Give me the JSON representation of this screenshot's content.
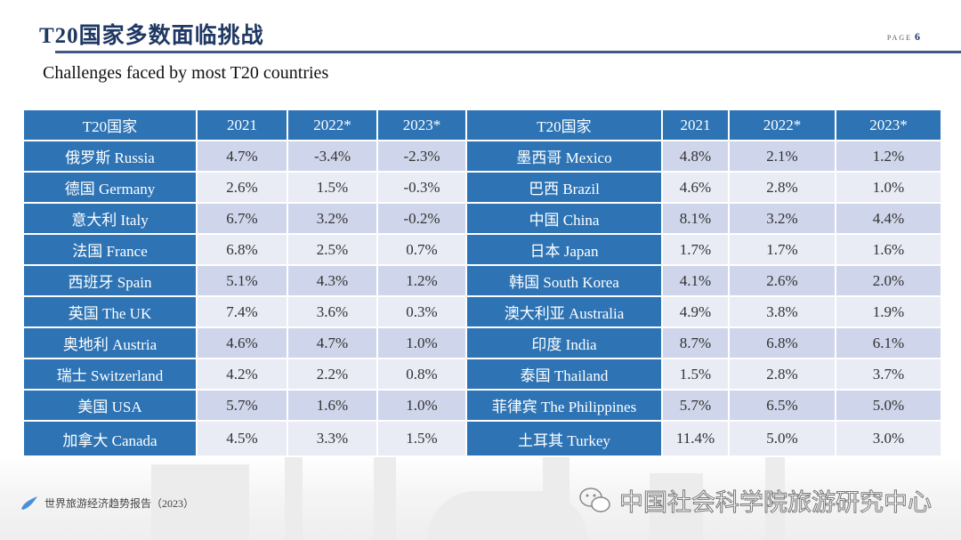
{
  "header": {
    "title": "T20国家多数面临挑战",
    "page_label": "PAGE",
    "page_number": "6"
  },
  "subtitle": "Challenges faced by most T20 countries",
  "table": {
    "columns": [
      "T20国家",
      "2021",
      "2022*",
      "2023*"
    ],
    "left": [
      [
        "俄罗斯 Russia",
        "4.7%",
        "-3.4%",
        "-2.3%"
      ],
      [
        "德国 Germany",
        "2.6%",
        "1.5%",
        "-0.3%"
      ],
      [
        "意大利 Italy",
        "6.7%",
        "3.2%",
        "-0.2%"
      ],
      [
        "法国 France",
        "6.8%",
        "2.5%",
        "0.7%"
      ],
      [
        "西班牙 Spain",
        "5.1%",
        "4.3%",
        "1.2%"
      ],
      [
        "英国 The UK",
        "7.4%",
        "3.6%",
        "0.3%"
      ],
      [
        "奥地利  Austria",
        "4.6%",
        "4.7%",
        "1.0%"
      ],
      [
        "瑞士 Switzerland",
        "4.2%",
        "2.2%",
        "0.8%"
      ],
      [
        "美国 USA",
        "5.7%",
        "1.6%",
        "1.0%"
      ],
      [
        "加拿大 Canada",
        "4.5%",
        "3.3%",
        "1.5%"
      ]
    ],
    "right": [
      [
        "墨西哥 Mexico",
        "4.8%",
        "2.1%",
        "1.2%"
      ],
      [
        "巴西 Brazil",
        "4.6%",
        "2.8%",
        "1.0%"
      ],
      [
        "中国 China",
        "8.1%",
        "3.2%",
        "4.4%"
      ],
      [
        "日本 Japan",
        "1.7%",
        "1.7%",
        "1.6%"
      ],
      [
        "韩国 South Korea",
        "4.1%",
        "2.6%",
        "2.0%"
      ],
      [
        "澳大利亚 Australia",
        "4.9%",
        "3.8%",
        "1.9%"
      ],
      [
        "印度 India",
        "8.7%",
        "6.8%",
        "6.1%"
      ],
      [
        "泰国 Thailand",
        "1.5%",
        "2.8%",
        "3.7%"
      ],
      [
        "菲律宾 The Philippines",
        "5.7%",
        "6.5%",
        "5.0%"
      ],
      [
        "土耳其 Turkey",
        "11.4%",
        "5.0%",
        "3.0%"
      ]
    ]
  },
  "footer": {
    "report": "世界旅游经济趋势报告（2023）",
    "watermark": "中国社会科学院旅游研究中心",
    "watermark_icon": "wechat-icon",
    "report_icon": "pen-icon"
  },
  "colors": {
    "header_blue": "#2e74b5",
    "title_navy": "#1f3864",
    "row_odd": "#cfd5ea",
    "row_even": "#e9ebf5"
  }
}
